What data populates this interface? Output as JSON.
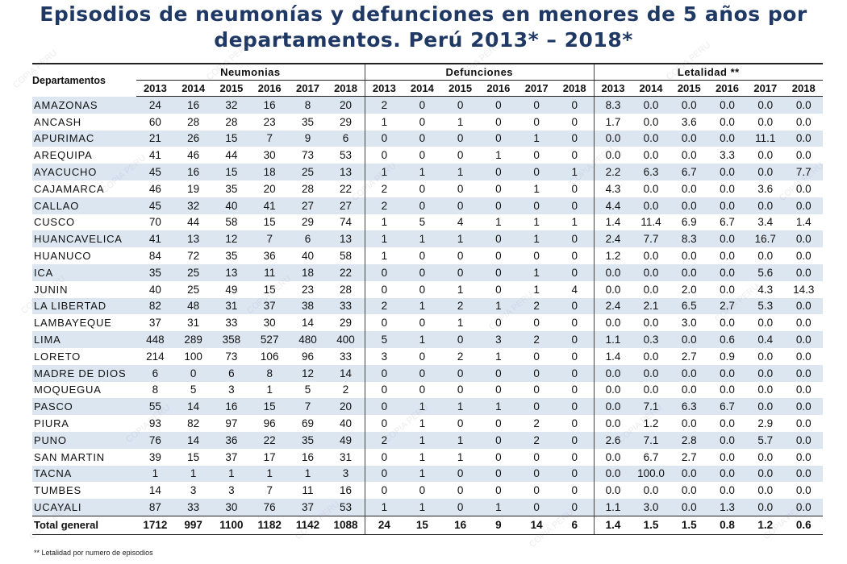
{
  "title": {
    "line1": "Episodios de neumonías y defunciones en menores de 5 años por",
    "line2": "departamentos. Perú 2013* – 2018*"
  },
  "table": {
    "dept_header": "Departamentos",
    "groups": [
      "Neumonias",
      "Defunciones",
      "Letalidad **"
    ],
    "years": [
      "2013",
      "2014",
      "2015",
      "2016",
      "2017",
      "2018"
    ],
    "rows": [
      {
        "dept": "AMAZONAS",
        "neumonias": [
          "24",
          "16",
          "32",
          "16",
          "8",
          "20"
        ],
        "defunciones": [
          "2",
          "0",
          "0",
          "0",
          "0",
          "0"
        ],
        "letalidad": [
          "8.3",
          "0.0",
          "0.0",
          "0.0",
          "0.0",
          "0.0"
        ]
      },
      {
        "dept": "ANCASH",
        "neumonias": [
          "60",
          "28",
          "28",
          "23",
          "35",
          "29"
        ],
        "defunciones": [
          "1",
          "0",
          "1",
          "0",
          "0",
          "0"
        ],
        "letalidad": [
          "1.7",
          "0.0",
          "3.6",
          "0.0",
          "0.0",
          "0.0"
        ]
      },
      {
        "dept": "APURIMAC",
        "neumonias": [
          "21",
          "26",
          "15",
          "7",
          "9",
          "6"
        ],
        "defunciones": [
          "0",
          "0",
          "0",
          "0",
          "1",
          "0"
        ],
        "letalidad": [
          "0.0",
          "0.0",
          "0.0",
          "0.0",
          "11.1",
          "0.0"
        ]
      },
      {
        "dept": "AREQUIPA",
        "neumonias": [
          "41",
          "46",
          "44",
          "30",
          "73",
          "53"
        ],
        "defunciones": [
          "0",
          "0",
          "0",
          "1",
          "0",
          "0"
        ],
        "letalidad": [
          "0.0",
          "0.0",
          "0.0",
          "3.3",
          "0.0",
          "0.0"
        ]
      },
      {
        "dept": "AYACUCHO",
        "neumonias": [
          "45",
          "16",
          "15",
          "18",
          "25",
          "13"
        ],
        "defunciones": [
          "1",
          "1",
          "1",
          "0",
          "0",
          "1"
        ],
        "letalidad": [
          "2.2",
          "6.3",
          "6.7",
          "0.0",
          "0.0",
          "7.7"
        ]
      },
      {
        "dept": "CAJAMARCA",
        "neumonias": [
          "46",
          "19",
          "35",
          "20",
          "28",
          "22"
        ],
        "defunciones": [
          "2",
          "0",
          "0",
          "0",
          "1",
          "0"
        ],
        "letalidad": [
          "4.3",
          "0.0",
          "0.0",
          "0.0",
          "3.6",
          "0.0"
        ]
      },
      {
        "dept": "CALLAO",
        "neumonias": [
          "45",
          "32",
          "40",
          "41",
          "27",
          "27"
        ],
        "defunciones": [
          "2",
          "0",
          "0",
          "0",
          "0",
          "0"
        ],
        "letalidad": [
          "4.4",
          "0.0",
          "0.0",
          "0.0",
          "0.0",
          "0.0"
        ]
      },
      {
        "dept": "CUSCO",
        "neumonias": [
          "70",
          "44",
          "58",
          "15",
          "29",
          "74"
        ],
        "defunciones": [
          "1",
          "5",
          "4",
          "1",
          "1",
          "1"
        ],
        "letalidad": [
          "1.4",
          "11.4",
          "6.9",
          "6.7",
          "3.4",
          "1.4"
        ]
      },
      {
        "dept": "HUANCAVELICA",
        "neumonias": [
          "41",
          "13",
          "12",
          "7",
          "6",
          "13"
        ],
        "defunciones": [
          "1",
          "1",
          "1",
          "0",
          "1",
          "0"
        ],
        "letalidad": [
          "2.4",
          "7.7",
          "8.3",
          "0.0",
          "16.7",
          "0.0"
        ]
      },
      {
        "dept": "HUANUCO",
        "neumonias": [
          "84",
          "72",
          "35",
          "36",
          "40",
          "58"
        ],
        "defunciones": [
          "1",
          "0",
          "0",
          "0",
          "0",
          "0"
        ],
        "letalidad": [
          "1.2",
          "0.0",
          "0.0",
          "0.0",
          "0.0",
          "0.0"
        ]
      },
      {
        "dept": "ICA",
        "neumonias": [
          "35",
          "25",
          "13",
          "11",
          "18",
          "22"
        ],
        "defunciones": [
          "0",
          "0",
          "0",
          "0",
          "1",
          "0"
        ],
        "letalidad": [
          "0.0",
          "0.0",
          "0.0",
          "0.0",
          "5.6",
          "0.0"
        ]
      },
      {
        "dept": "JUNIN",
        "neumonias": [
          "40",
          "25",
          "49",
          "15",
          "23",
          "28"
        ],
        "defunciones": [
          "0",
          "0",
          "1",
          "0",
          "1",
          "4"
        ],
        "letalidad": [
          "0.0",
          "0.0",
          "2.0",
          "0.0",
          "4.3",
          "14.3"
        ]
      },
      {
        "dept": "LA LIBERTAD",
        "neumonias": [
          "82",
          "48",
          "31",
          "37",
          "38",
          "33"
        ],
        "defunciones": [
          "2",
          "1",
          "2",
          "1",
          "2",
          "0"
        ],
        "letalidad": [
          "2.4",
          "2.1",
          "6.5",
          "2.7",
          "5.3",
          "0.0"
        ]
      },
      {
        "dept": "LAMBAYEQUE",
        "neumonias": [
          "37",
          "31",
          "33",
          "30",
          "14",
          "29"
        ],
        "defunciones": [
          "0",
          "0",
          "1",
          "0",
          "0",
          "0"
        ],
        "letalidad": [
          "0.0",
          "0.0",
          "3.0",
          "0.0",
          "0.0",
          "0.0"
        ]
      },
      {
        "dept": "LIMA",
        "neumonias": [
          "448",
          "289",
          "358",
          "527",
          "480",
          "400"
        ],
        "defunciones": [
          "5",
          "1",
          "0",
          "3",
          "2",
          "0"
        ],
        "letalidad": [
          "1.1",
          "0.3",
          "0.0",
          "0.6",
          "0.4",
          "0.0"
        ]
      },
      {
        "dept": "LORETO",
        "neumonias": [
          "214",
          "100",
          "73",
          "106",
          "96",
          "33"
        ],
        "defunciones": [
          "3",
          "0",
          "2",
          "1",
          "0",
          "0"
        ],
        "letalidad": [
          "1.4",
          "0.0",
          "2.7",
          "0.9",
          "0.0",
          "0.0"
        ]
      },
      {
        "dept": "MADRE DE DIOS",
        "neumonias": [
          "6",
          "0",
          "6",
          "8",
          "12",
          "14"
        ],
        "defunciones": [
          "0",
          "0",
          "0",
          "0",
          "0",
          "0"
        ],
        "letalidad": [
          "0.0",
          "0.0",
          "0.0",
          "0.0",
          "0.0",
          "0.0"
        ]
      },
      {
        "dept": "MOQUEGUA",
        "neumonias": [
          "8",
          "5",
          "3",
          "1",
          "5",
          "2"
        ],
        "defunciones": [
          "0",
          "0",
          "0",
          "0",
          "0",
          "0"
        ],
        "letalidad": [
          "0.0",
          "0.0",
          "0.0",
          "0.0",
          "0.0",
          "0.0"
        ]
      },
      {
        "dept": "PASCO",
        "neumonias": [
          "55",
          "14",
          "16",
          "15",
          "7",
          "20"
        ],
        "defunciones": [
          "0",
          "1",
          "1",
          "1",
          "0",
          "0"
        ],
        "letalidad": [
          "0.0",
          "7.1",
          "6.3",
          "6.7",
          "0.0",
          "0.0"
        ]
      },
      {
        "dept": "PIURA",
        "neumonias": [
          "93",
          "82",
          "97",
          "96",
          "69",
          "40"
        ],
        "defunciones": [
          "0",
          "1",
          "0",
          "0",
          "2",
          "0"
        ],
        "letalidad": [
          "0.0",
          "1.2",
          "0.0",
          "0.0",
          "2.9",
          "0.0"
        ]
      },
      {
        "dept": "PUNO",
        "neumonias": [
          "76",
          "14",
          "36",
          "22",
          "35",
          "49"
        ],
        "defunciones": [
          "2",
          "1",
          "1",
          "0",
          "2",
          "0"
        ],
        "letalidad": [
          "2.6",
          "7.1",
          "2.8",
          "0.0",
          "5.7",
          "0.0"
        ]
      },
      {
        "dept": "SAN MARTIN",
        "neumonias": [
          "39",
          "15",
          "37",
          "17",
          "16",
          "31"
        ],
        "defunciones": [
          "0",
          "1",
          "1",
          "0",
          "0",
          "0"
        ],
        "letalidad": [
          "0.0",
          "6.7",
          "2.7",
          "0.0",
          "0.0",
          "0.0"
        ]
      },
      {
        "dept": "TACNA",
        "neumonias": [
          "1",
          "1",
          "1",
          "1",
          "1",
          "3"
        ],
        "defunciones": [
          "0",
          "1",
          "0",
          "0",
          "0",
          "0"
        ],
        "letalidad": [
          "0.0",
          "100.0",
          "0.0",
          "0.0",
          "0.0",
          "0.0"
        ]
      },
      {
        "dept": "TUMBES",
        "neumonias": [
          "14",
          "3",
          "3",
          "7",
          "11",
          "16"
        ],
        "defunciones": [
          "0",
          "0",
          "0",
          "0",
          "0",
          "0"
        ],
        "letalidad": [
          "0.0",
          "0.0",
          "0.0",
          "0.0",
          "0.0",
          "0.0"
        ]
      },
      {
        "dept": "UCAYALI",
        "neumonias": [
          "87",
          "33",
          "30",
          "76",
          "37",
          "53"
        ],
        "defunciones": [
          "1",
          "1",
          "0",
          "1",
          "0",
          "0"
        ],
        "letalidad": [
          "1.1",
          "3.0",
          "0.0",
          "1.3",
          "0.0",
          "0.0"
        ]
      }
    ],
    "total": {
      "dept": "Total general",
      "neumonias": [
        "1712",
        "997",
        "1100",
        "1182",
        "1142",
        "1088"
      ],
      "defunciones": [
        "24",
        "15",
        "16",
        "9",
        "14",
        "6"
      ],
      "letalidad": [
        "1.4",
        "1.5",
        "1.5",
        "0.8",
        "1.2",
        "0.6"
      ]
    }
  },
  "footnote": "** Letalidad por numero de episodios",
  "watermark": "COPIA PERU"
}
